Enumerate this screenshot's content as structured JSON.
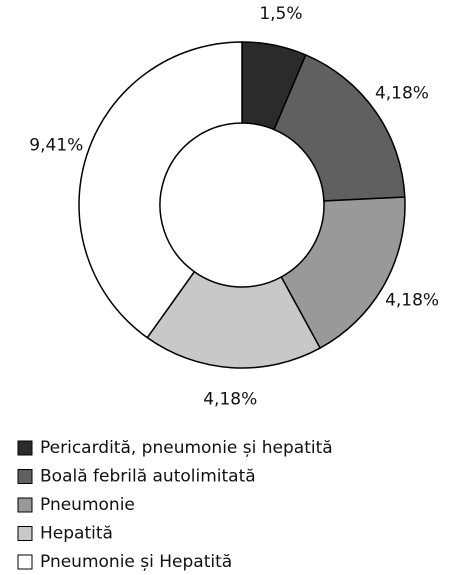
{
  "chart_data": {
    "type": "donut",
    "categories": [
      "Pericardită, pneumonie și hepatită",
      "Boală febrilă autolimitată",
      "Pneumonie",
      "Hepatită",
      "Pneumonie și Hepatită"
    ],
    "values": [
      1.5,
      4.18,
      4.18,
      4.18,
      9.41
    ],
    "value_labels": [
      "1,5%",
      "4,18%",
      "4,18%",
      "4,18%",
      "9,41%"
    ],
    "colors": [
      "#2b2b2b",
      "#606060",
      "#999999",
      "#c8c8c8",
      "#ffffff"
    ],
    "legend": "bottom"
  }
}
